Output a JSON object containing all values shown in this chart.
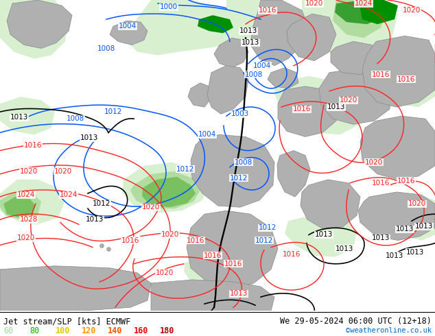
{
  "title_left": "Jet stream/SLP [kts] ECMWF",
  "title_right": "We 29-05-2024 06:00 UTC (12+18)",
  "credit": "©weatheronline.co.uk",
  "legend_values": [
    "60",
    "80",
    "100",
    "120",
    "140",
    "160",
    "180"
  ],
  "legend_colors": [
    "#98e098",
    "#00bb00",
    "#e8c800",
    "#ff9900",
    "#ff5500",
    "#ee0000",
    "#bb0000"
  ],
  "bg_color": "#ffffff",
  "bottom_bar_color": "#ffffff",
  "fig_width": 6.34,
  "fig_height": 4.9,
  "label_font_size": 8.5,
  "credit_font_size": 7.5,
  "legend_font_size": 8.5,
  "map_bg": "#f0f0f0",
  "green_l1": "#d8f0d0",
  "green_l2": "#b0dca0",
  "green_l3": "#78c060",
  "green_l4": "#38a030",
  "green_l5": "#009000",
  "land_gray": "#c8c8c8",
  "coast_color": "#888888",
  "blue_contour": "#0055ff",
  "black_contour": "#000000",
  "red_contour": "#ff2020"
}
